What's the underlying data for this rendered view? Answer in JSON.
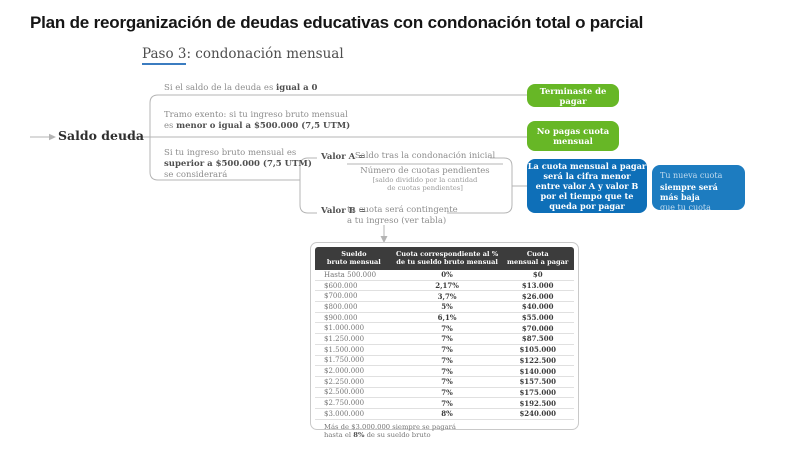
{
  "title": "Plan de reorganización de deudas educativas con condonación total o parcial",
  "subtitle": {
    "step": "Paso 3",
    "rest": ": condonación mensual"
  },
  "flow": {
    "root": "Saldo deuda",
    "branch_zero": {
      "pre": "Si el saldo de la deuda es ",
      "bold": "igual a 0"
    },
    "branch_exempt": {
      "line1": "Tramo exento: si tu ingreso bruto mensual",
      "pre": "es ",
      "bold": "menor o igual a $500.000 (7,5 UTM)"
    },
    "branch_above": {
      "line1": "Si tu ingreso bruto mensual es",
      "bold": "superior a $500.000 (7,5 UTM)",
      "line3": "se considerará"
    },
    "valor_a": {
      "label": "Valor A =",
      "numerator": "Saldo tras la condonación inicial",
      "denominator": "Número de cuotas pendientes",
      "note_line1": "[saldo dividido por la cantidad",
      "note_line2": "de cuotas pendientes]"
    },
    "valor_b": {
      "label": "Valor B =",
      "line1": "tu cuota será contingente",
      "line2": "a tu ingreso (ver tabla)"
    }
  },
  "callouts": {
    "finished": "Terminaste de pagar",
    "no_payment": {
      "line1": "No pagas cuota",
      "line2": "mensual"
    },
    "monthly_rule": {
      "line1": "La cuota mensual a pagar",
      "line2": "será la cifra menor",
      "line3": "entre valor A y valor B",
      "line4": "por el tiempo que te",
      "line5": "queda por pagar"
    },
    "lower_note": {
      "pre": "Tu nueva cuota",
      "bold": "siempre será más baja",
      "post": "que tu cuota actual"
    }
  },
  "table": {
    "headers": [
      {
        "line1": "Sueldo",
        "line2": "bruto mensual"
      },
      {
        "line1": "Cuota correspondiente al %",
        "line2": "de tu sueldo bruto mensual"
      },
      {
        "line1": "Cuota",
        "line2": "mensual a pagar"
      }
    ],
    "rows": [
      [
        "Hasta 500.000",
        "0%",
        "$0"
      ],
      [
        "$600.000",
        "2,17%",
        "$13.000"
      ],
      [
        "$700.000",
        "3,7%",
        "$26.000"
      ],
      [
        "$800.000",
        "5%",
        "$40.000"
      ],
      [
        "$900.000",
        "6,1%",
        "$55.000"
      ],
      [
        "$1.000.000",
        "7%",
        "$70.000"
      ],
      [
        "$1.250.000",
        "7%",
        "$87.500"
      ],
      [
        "$1.500.000",
        "7%",
        "$105.000"
      ],
      [
        "$1.750.000",
        "7%",
        "$122.500"
      ],
      [
        "$2.000.000",
        "7%",
        "$140.000"
      ],
      [
        "$2.250.000",
        "7%",
        "$157.500"
      ],
      [
        "$2.500.000",
        "7%",
        "$175.000"
      ],
      [
        "$2.750.000",
        "7%",
        "$192.500"
      ],
      [
        "$3.000.000",
        "8%",
        "$240.000"
      ]
    ],
    "footnote": {
      "line1": "Más de $3.000.000 siempre se pagará",
      "pre": "hasta el ",
      "bold": "8%",
      "post": " de su sueldo bruto"
    }
  },
  "colors": {
    "green": "#67b726",
    "blue_dark": "#0e6fb8",
    "blue_light": "#1d7cc0",
    "table_header_bg": "#3c3c3c",
    "step_underline": "#3b7cc0",
    "connector_gray": "#b4b4b4"
  }
}
